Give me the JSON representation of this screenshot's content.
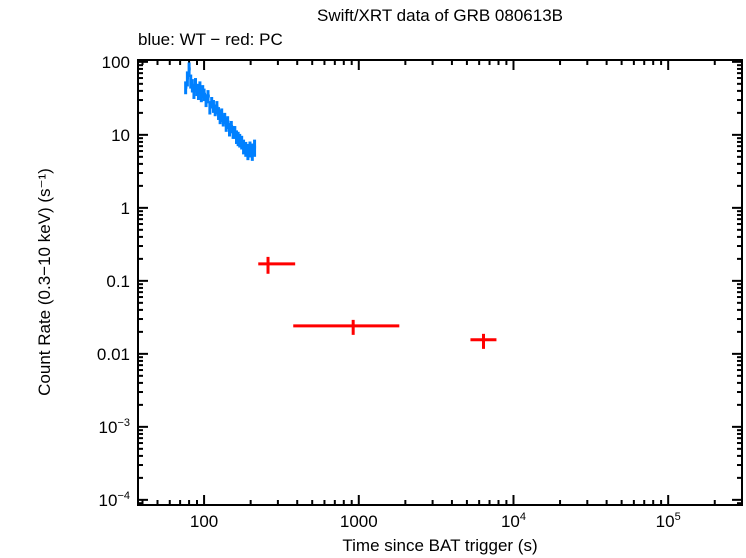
{
  "chart_data": {
    "type": "scatter",
    "title": "Swift/XRT data of GRB 080613B",
    "subtitle": "blue: WT − red: PC",
    "xlabel": "Time since BAT trigger (s)",
    "ylabel": "Count Rate (0.3−10 keV) (s⁻¹)",
    "xscale": "log",
    "yscale": "log",
    "xlim": [
      37.4,
      300000
    ],
    "ylim": [
      8.5e-05,
      106
    ],
    "xticks": [
      {
        "v": 100,
        "label": "100"
      },
      {
        "v": 1000,
        "label": "1000"
      },
      {
        "v": 10000,
        "label": "10",
        "exp": "4"
      },
      {
        "v": 100000,
        "label": "10",
        "exp": "5"
      }
    ],
    "yticks": [
      {
        "v": 100,
        "label": "100"
      },
      {
        "v": 10,
        "label": "10"
      },
      {
        "v": 1,
        "label": "1"
      },
      {
        "v": 0.1,
        "label": "0.1"
      },
      {
        "v": 0.01,
        "label": "0.01"
      },
      {
        "v": 0.001,
        "label": "10",
        "exp": "−3"
      },
      {
        "v": 0.0001,
        "label": "10",
        "exp": "−4"
      }
    ],
    "grid": false,
    "series": [
      {
        "name": "WT",
        "color": "#0080ff",
        "points": [
          [
            76,
            45,
            9
          ],
          [
            78,
            60,
            14
          ],
          [
            80,
            80,
            18
          ],
          [
            82,
            55,
            12
          ],
          [
            84,
            48,
            10
          ],
          [
            86,
            40,
            9
          ],
          [
            88,
            50,
            10
          ],
          [
            90,
            42,
            8
          ],
          [
            92,
            38,
            8
          ],
          [
            94,
            45,
            9
          ],
          [
            96,
            35,
            7
          ],
          [
            98,
            40,
            8
          ],
          [
            100,
            36,
            7
          ],
          [
            103,
            30,
            6
          ],
          [
            106,
            34,
            7
          ],
          [
            109,
            24,
            5
          ],
          [
            112,
            28,
            5
          ],
          [
            115,
            25,
            5
          ],
          [
            118,
            22,
            4
          ],
          [
            121,
            24,
            5
          ],
          [
            124,
            20,
            4
          ],
          [
            127,
            18,
            4
          ],
          [
            130,
            19,
            4
          ],
          [
            133,
            16,
            3
          ],
          [
            136,
            17,
            3
          ],
          [
            139,
            14,
            3
          ],
          [
            142,
            15,
            3
          ],
          [
            146,
            12,
            2.5
          ],
          [
            150,
            13,
            2.5
          ],
          [
            154,
            11,
            2.2
          ],
          [
            158,
            11,
            2.2
          ],
          [
            162,
            9.5,
            2
          ],
          [
            166,
            9,
            2
          ],
          [
            170,
            8.5,
            1.8
          ],
          [
            175,
            8,
            1.7
          ],
          [
            180,
            7,
            1.6
          ],
          [
            186,
            6.5,
            1.5
          ],
          [
            192,
            6,
            1.5
          ],
          [
            198,
            6.5,
            1.6
          ],
          [
            205,
            6,
            1.6
          ],
          [
            212,
            6.8,
            1.8
          ]
        ]
      },
      {
        "name": "PC",
        "color": "#ff0000",
        "points": [
          {
            "x": 259,
            "xlo": 224,
            "xhi": 388,
            "y": 0.171,
            "ylo": 0.125,
            "yhi": 0.213
          },
          {
            "x": 920,
            "xlo": 377,
            "xhi": 1828,
            "y": 0.0242,
            "ylo": 0.0182,
            "yhi": 0.0292
          },
          {
            "x": 6400,
            "xlo": 5270,
            "xhi": 7760,
            "y": 0.0156,
            "ylo": 0.0117,
            "yhi": 0.0188
          }
        ]
      }
    ]
  }
}
